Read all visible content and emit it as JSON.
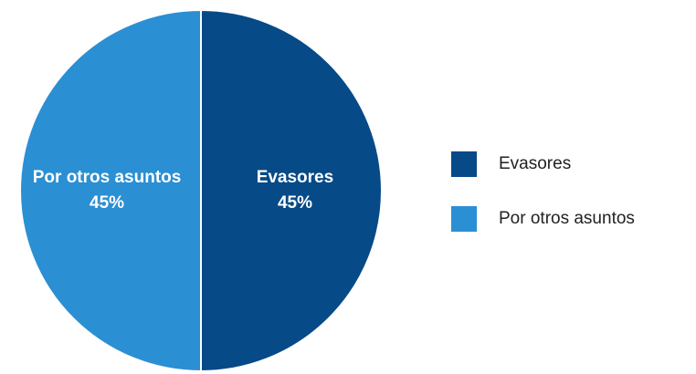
{
  "chart_data": {
    "type": "pie",
    "categories": [
      "Evasores",
      "Por otros asuntos"
    ],
    "values": [
      45,
      45
    ],
    "value_labels": [
      "45%",
      "45%"
    ],
    "colors": [
      "#064a87",
      "#2b8fd3"
    ],
    "legend": "right"
  }
}
